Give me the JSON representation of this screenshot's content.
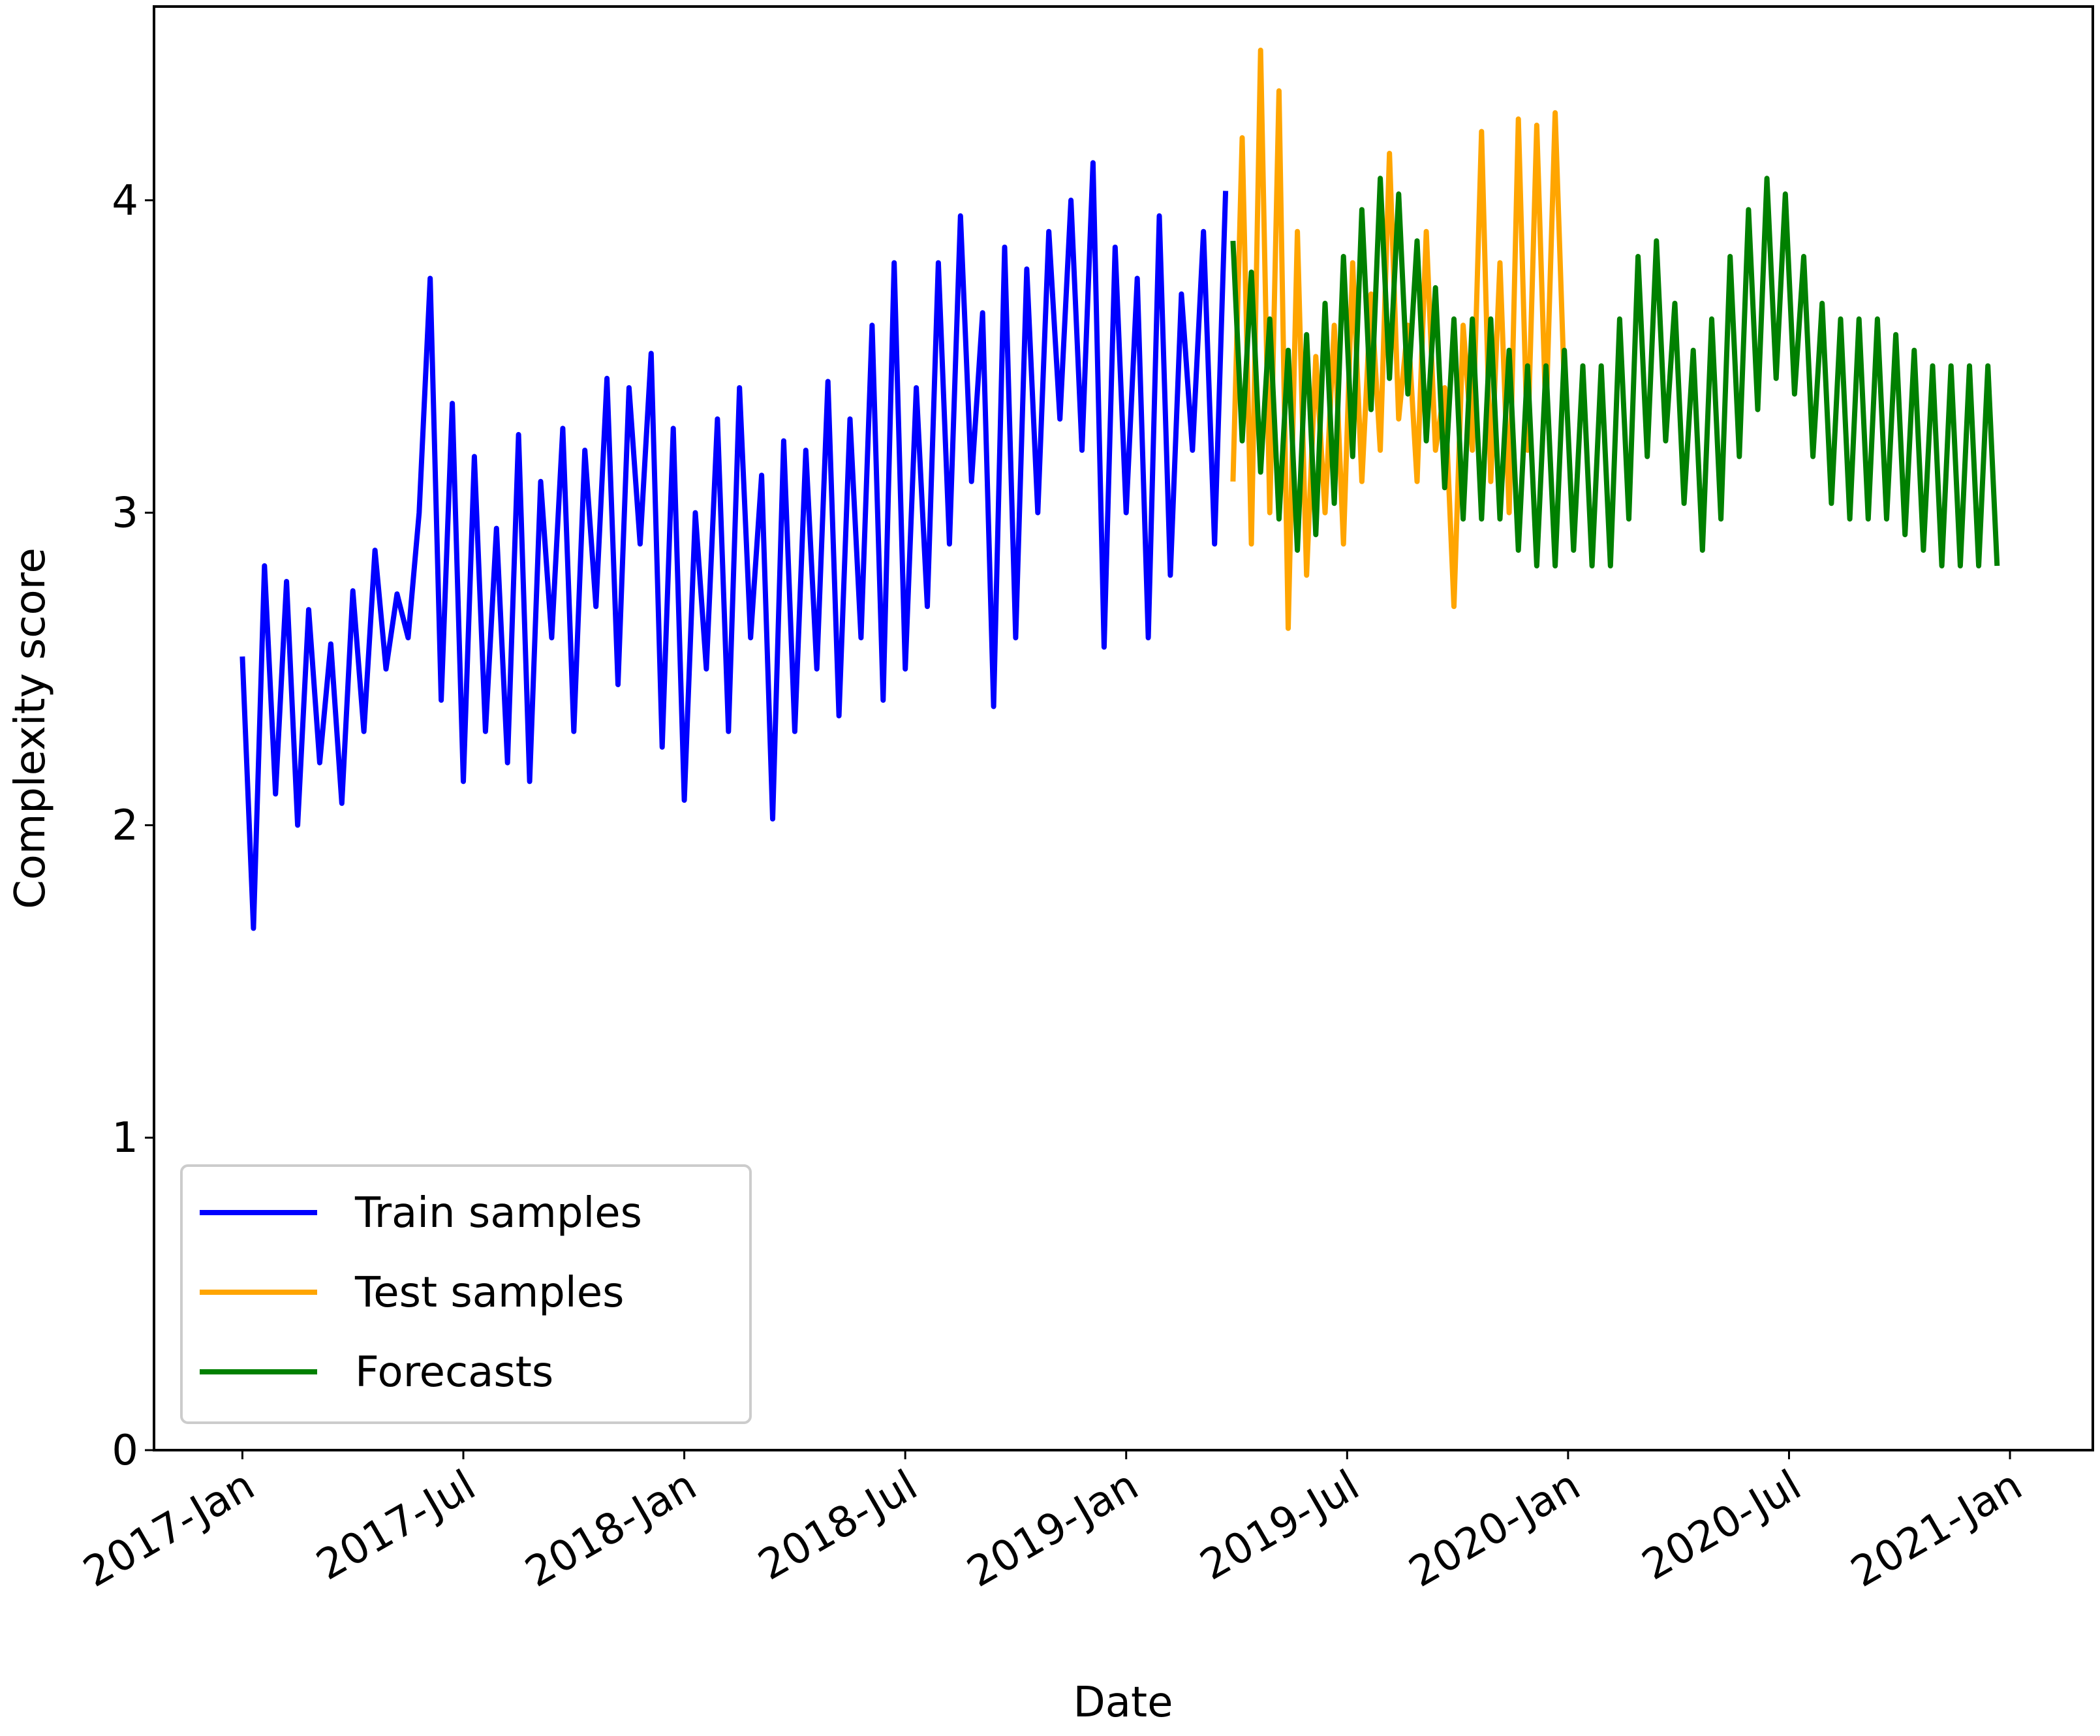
{
  "chart_data": {
    "type": "line",
    "x_label": "Date",
    "y_label": "Complexity score",
    "xlim": [
      -2.4,
      50.25
    ],
    "ylim": [
      0,
      4.62
    ],
    "xticks": [
      {
        "value": 0,
        "label": "2017-Jan"
      },
      {
        "value": 6,
        "label": "2017-Jul"
      },
      {
        "value": 12,
        "label": "2018-Jan"
      },
      {
        "value": 18,
        "label": "2018-Jul"
      },
      {
        "value": 24,
        "label": "2019-Jan"
      },
      {
        "value": 30,
        "label": "2019-Jul"
      },
      {
        "value": 36,
        "label": "2020-Jan"
      },
      {
        "value": 42,
        "label": "2020-Jul"
      },
      {
        "value": 48,
        "label": "2021-Jan"
      }
    ],
    "yticks": [
      0,
      1,
      2,
      3,
      4
    ],
    "grid": false,
    "legend": "lower left",
    "series": [
      {
        "name": "Train samples",
        "color": "#0000ff",
        "x": [
          0,
          0.3,
          0.6,
          0.9,
          1.2,
          1.5,
          1.8,
          2.1,
          2.4,
          2.7,
          3,
          3.3,
          3.6,
          3.9,
          4.2,
          4.5,
          4.8,
          5.1,
          5.4,
          5.7,
          6,
          6.3,
          6.6,
          6.9,
          7.2,
          7.5,
          7.8,
          8.1,
          8.4,
          8.7,
          9,
          9.3,
          9.6,
          9.9,
          10.2,
          10.5,
          10.8,
          11.1,
          11.4,
          11.7,
          12,
          12.3,
          12.6,
          12.9,
          13.2,
          13.5,
          13.8,
          14.1,
          14.4,
          14.7,
          15,
          15.3,
          15.6,
          15.9,
          16.2,
          16.5,
          16.8,
          17.1,
          17.4,
          17.7,
          18,
          18.3,
          18.6,
          18.9,
          19.2,
          19.5,
          19.8,
          20.1,
          20.4,
          20.7,
          21,
          21.3,
          21.6,
          21.9,
          22.2,
          22.5,
          22.8,
          23.1,
          23.4,
          23.7,
          24,
          24.3,
          24.6,
          24.9,
          25.2,
          25.5,
          25.8,
          26.1,
          26.4,
          26.7
        ],
        "values": [
          2.54,
          1.67,
          2.83,
          2.1,
          2.78,
          2.0,
          2.69,
          2.2,
          2.58,
          2.07,
          2.75,
          2.3,
          2.88,
          2.5,
          2.74,
          2.6,
          3.0,
          3.75,
          2.4,
          3.35,
          2.14,
          3.18,
          2.3,
          2.95,
          2.2,
          3.25,
          2.14,
          3.1,
          2.6,
          3.27,
          2.3,
          3.2,
          2.7,
          3.43,
          2.45,
          3.4,
          2.9,
          3.51,
          2.25,
          3.27,
          2.08,
          3.0,
          2.5,
          3.3,
          2.3,
          3.4,
          2.6,
          3.12,
          2.02,
          3.23,
          2.3,
          3.2,
          2.5,
          3.42,
          2.35,
          3.3,
          2.6,
          3.6,
          2.4,
          3.8,
          2.5,
          3.4,
          2.7,
          3.8,
          2.9,
          3.95,
          3.1,
          3.64,
          2.38,
          3.85,
          2.6,
          3.78,
          3.0,
          3.9,
          3.3,
          4.0,
          3.2,
          4.12,
          2.57,
          3.85,
          3.0,
          3.75,
          2.6,
          3.95,
          2.8,
          3.7,
          3.2,
          3.9,
          2.9,
          4.03
        ]
      },
      {
        "name": "Test samples",
        "color": "#ffa500",
        "x": [
          26.9,
          27.15,
          27.4,
          27.65,
          27.9,
          28.15,
          28.4,
          28.65,
          28.9,
          29.15,
          29.4,
          29.65,
          29.9,
          30.15,
          30.4,
          30.65,
          30.9,
          31.15,
          31.4,
          31.65,
          31.9,
          32.15,
          32.4,
          32.65,
          32.9,
          33.15,
          33.4,
          33.65,
          33.9,
          34.15,
          34.4,
          34.65,
          34.9,
          35.15,
          35.4,
          35.65,
          35.9
        ],
        "values": [
          3.1,
          4.2,
          2.9,
          4.48,
          3.0,
          4.35,
          2.63,
          3.9,
          2.8,
          3.5,
          3.0,
          3.6,
          2.9,
          3.8,
          3.1,
          3.7,
          3.2,
          4.15,
          3.3,
          3.6,
          3.1,
          3.9,
          3.2,
          3.4,
          2.7,
          3.6,
          3.2,
          4.22,
          3.1,
          3.8,
          3.0,
          4.26,
          3.2,
          4.24,
          3.3,
          4.28,
          3.4
        ]
      },
      {
        "name": "Forecasts",
        "color": "#008000",
        "x": [
          26.9,
          27.15,
          27.4,
          27.65,
          27.9,
          28.15,
          28.4,
          28.65,
          28.9,
          29.15,
          29.4,
          29.65,
          29.9,
          30.15,
          30.4,
          30.65,
          30.9,
          31.15,
          31.4,
          31.65,
          31.9,
          32.15,
          32.4,
          32.65,
          32.9,
          33.15,
          33.4,
          33.65,
          33.9,
          34.15,
          34.4,
          34.65,
          34.9,
          35.15,
          35.4,
          35.65,
          35.9,
          36.15,
          36.4,
          36.65,
          36.9,
          37.15,
          37.4,
          37.65,
          37.9,
          38.15,
          38.4,
          38.65,
          38.9,
          39.15,
          39.4,
          39.65,
          39.9,
          40.15,
          40.4,
          40.65,
          40.9,
          41.15,
          41.4,
          41.65,
          41.9,
          42.15,
          42.4,
          42.65,
          42.9,
          43.15,
          43.4,
          43.65,
          43.9,
          44.15,
          44.4,
          44.65,
          44.9,
          45.15,
          45.4,
          45.65,
          45.9,
          46.15,
          46.4,
          46.65,
          46.9,
          47.15,
          47.4,
          47.65
        ],
        "values": [
          3.87,
          3.23,
          3.77,
          3.13,
          3.62,
          2.98,
          3.52,
          2.88,
          3.57,
          2.93,
          3.67,
          3.03,
          3.82,
          3.18,
          3.97,
          3.33,
          4.07,
          3.43,
          4.02,
          3.38,
          3.87,
          3.23,
          3.72,
          3.08,
          3.62,
          2.98,
          3.62,
          2.98,
          3.62,
          2.98,
          3.52,
          2.88,
          3.47,
          2.83,
          3.47,
          2.83,
          3.52,
          2.88,
          3.47,
          2.83,
          3.47,
          2.83,
          3.62,
          2.98,
          3.82,
          3.18,
          3.87,
          3.23,
          3.67,
          3.03,
          3.52,
          2.88,
          3.62,
          2.98,
          3.82,
          3.18,
          3.97,
          3.33,
          4.07,
          3.43,
          4.02,
          3.38,
          3.82,
          3.18,
          3.67,
          3.03,
          3.62,
          2.98,
          3.62,
          2.98,
          3.62,
          2.98,
          3.57,
          2.93,
          3.52,
          2.88,
          3.47,
          2.83,
          3.47,
          2.83,
          3.47,
          2.83,
          3.47,
          2.83
        ]
      }
    ]
  }
}
